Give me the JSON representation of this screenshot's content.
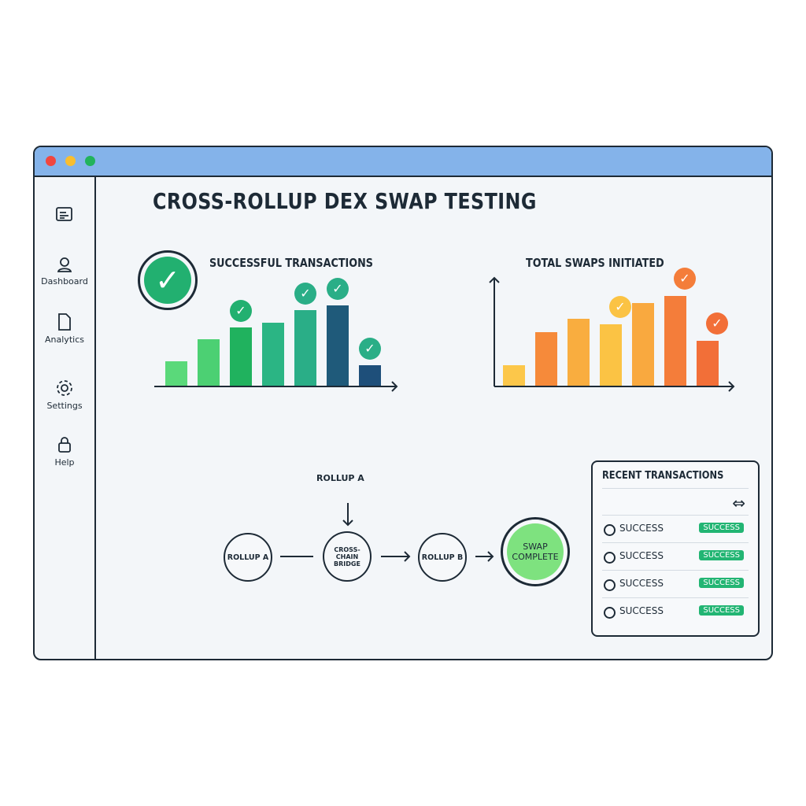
{
  "window": {
    "controls": [
      "close",
      "minimize",
      "maximize"
    ],
    "colors": {
      "titlebar": "#84b3ea",
      "close": "#f1463f",
      "minimize": "#f9be2f",
      "maximize": "#22b35c"
    }
  },
  "sidebar": {
    "items": [
      {
        "label": "",
        "icon": "document-list-icon"
      },
      {
        "label": "Dashboard",
        "icon": "user-icon"
      },
      {
        "label": "Analytics",
        "icon": "file-icon"
      },
      {
        "label": "Settings",
        "icon": "gear-icon"
      },
      {
        "label": "Help",
        "icon": "lock-icon"
      }
    ]
  },
  "page": {
    "title": "CROSS-ROLLUP DEX SWAP TESTING"
  },
  "chart_data": [
    {
      "type": "bar",
      "title": "SUCCESSFUL TRANSACTIONS",
      "values": [
        32,
        60,
        75,
        81,
        97,
        103,
        27
      ],
      "checked": [
        false,
        false,
        true,
        false,
        true,
        true,
        true
      ],
      "colors": [
        "#5ad97a",
        "#4cd073",
        "#20b25e",
        "#2bb584",
        "#2aae87",
        "#1f5a7a",
        "#1e4f7a"
      ]
    },
    {
      "type": "bar",
      "title": "TOTAL SWAPS INITIATED",
      "values": [
        27,
        69,
        86,
        79,
        106,
        115,
        58
      ],
      "checked": [
        false,
        false,
        false,
        true,
        false,
        true,
        true
      ],
      "colors": [
        "#fcc74a",
        "#f68a3a",
        "#f9ad3f",
        "#fbc344",
        "#f9a93f",
        "#f47d3a",
        "#f26f38"
      ]
    }
  ],
  "flow": {
    "top_label": "ROLLUP A",
    "nodes": [
      "ROLLUP A",
      "CROSS-CHAIN BRIDGE",
      "ROLLUP B",
      "SWAP COMPLETE"
    ]
  },
  "recent": {
    "title": "RECENT TRANSACTIONS",
    "swap_icon": "swap-arrows-icon",
    "rows": [
      {
        "label": "SUCCESS",
        "status": "SUCCESS"
      },
      {
        "label": "SUCCESS",
        "status": "SUCCESS"
      },
      {
        "label": "SUCCESS",
        "status": "SUCCESS"
      },
      {
        "label": "SUCCESS",
        "status": "SUCCESS"
      }
    ]
  }
}
